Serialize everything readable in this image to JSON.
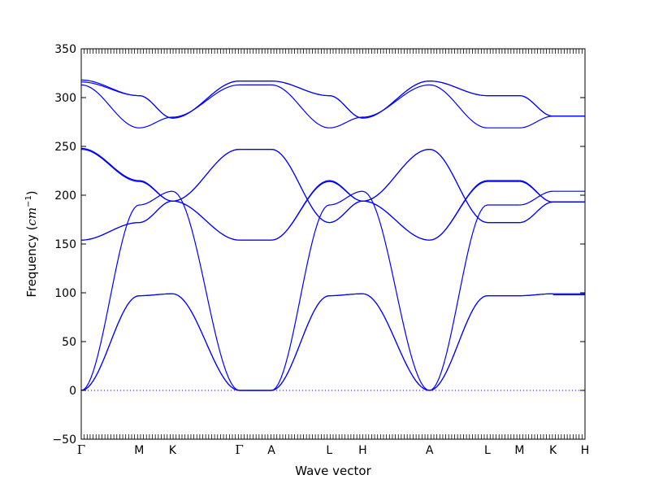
{
  "chart_data": {
    "type": "line",
    "title": "",
    "xlabel": "Wave vector",
    "ylabel": "Frequency",
    "ylabel_unit": "cm",
    "ylabel_unit_exp": "−1",
    "ylim": [
      -50,
      350
    ],
    "yticks": [
      "−50",
      "0",
      "50",
      "100",
      "150",
      "200",
      "250",
      "300",
      "350"
    ],
    "grid": false,
    "legend": "none",
    "line_color": "#0000ff",
    "zero_line_color": "#0000ff",
    "high_symmetry_points": [
      {
        "label": "Γ",
        "x": 0.0
      },
      {
        "label": "M",
        "x": 0.0667
      },
      {
        "label": "K",
        "x": 0.1051
      },
      {
        "label": "Γ",
        "x": 0.1821
      },
      {
        "label": "A",
        "x": 0.219
      },
      {
        "label": "L",
        "x": 0.2857
      },
      {
        "label": "H",
        "x": 0.3242
      },
      {
        "label": "A",
        "x": 0.4011
      },
      {
        "label": "L",
        "x": 0.4678
      },
      {
        "label": "M",
        "x": 0.5048
      },
      {
        "label": "K",
        "x": 0.5433
      },
      {
        "label": "H",
        "x": 0.5802
      }
    ],
    "branches": [
      {
        "segments": [
          [
            [
              0,
              0
            ],
            [
              0.0667,
              97
            ],
            [
              0.1051,
              99
            ],
            [
              0.1821,
              0
            ]
          ],
          [
            [
              0.1821,
              0
            ],
            [
              0.219,
              0
            ]
          ],
          [
            [
              0.219,
              0
            ],
            [
              0.2857,
              97
            ],
            [
              0.3242,
              99
            ],
            [
              0.4011,
              0
            ]
          ],
          [
            [
              0.4011,
              0
            ],
            [
              0.4678,
              97
            ],
            [
              0.5048,
              97
            ]
          ],
          [
            [
              0.5048,
              97
            ],
            [
              0.5433,
              99
            ]
          ],
          [
            [
              0.5433,
              98
            ],
            [
              0.5802,
              98
            ]
          ]
        ]
      },
      {
        "segments": [
          [
            [
              0,
              0
            ],
            [
              0.0667,
              97
            ],
            [
              0.1051,
              99
            ],
            [
              0.1821,
              0
            ]
          ],
          [
            [
              0.1821,
              0
            ],
            [
              0.219,
              0
            ]
          ],
          [
            [
              0.219,
              0
            ],
            [
              0.2857,
              97
            ],
            [
              0.3242,
              99
            ],
            [
              0.4011,
              0
            ]
          ],
          [
            [
              0.4011,
              0
            ],
            [
              0.4678,
              97
            ],
            [
              0.5048,
              97
            ]
          ],
          [
            [
              0.5048,
              97
            ],
            [
              0.5433,
              99
            ]
          ],
          [
            [
              0.5433,
              99
            ],
            [
              0.5802,
              99
            ]
          ]
        ]
      },
      {
        "segments": [
          [
            [
              0,
              0
            ],
            [
              0.0667,
              190
            ],
            [
              0.1051,
              204
            ],
            [
              0.1821,
              0
            ]
          ],
          [
            [
              0.1821,
              0
            ],
            [
              0.219,
              0
            ]
          ],
          [
            [
              0.219,
              0
            ],
            [
              0.2857,
              190
            ],
            [
              0.3242,
              204
            ],
            [
              0.4011,
              0
            ]
          ],
          [
            [
              0.4011,
              0
            ],
            [
              0.4678,
              190
            ],
            [
              0.5048,
              190
            ]
          ],
          [
            [
              0.5048,
              190
            ],
            [
              0.5433,
              204
            ]
          ],
          [
            [
              0.5433,
              204
            ],
            [
              0.5802,
              204
            ]
          ]
        ]
      },
      {
        "segments": [
          [
            [
              0,
              154
            ],
            [
              0.0667,
              172
            ],
            [
              0.1051,
              194
            ],
            [
              0.1821,
              247
            ]
          ],
          [
            [
              0.1821,
              247
            ],
            [
              0.219,
              247
            ]
          ],
          [
            [
              0.219,
              247
            ],
            [
              0.2857,
              172
            ],
            [
              0.3242,
              194
            ],
            [
              0.4011,
              247
            ]
          ],
          [
            [
              0.4011,
              247
            ],
            [
              0.4678,
              172
            ],
            [
              0.5048,
              172
            ]
          ],
          [
            [
              0.5048,
              172
            ],
            [
              0.5433,
              193
            ]
          ],
          [
            [
              0.5433,
              193
            ],
            [
              0.5802,
              193
            ]
          ]
        ]
      },
      {
        "segments": [
          [
            [
              0,
              154
            ],
            [
              0.0667,
              172
            ],
            [
              0.1051,
              194
            ],
            [
              0.1821,
              247
            ]
          ],
          [
            [
              0.1821,
              247
            ],
            [
              0.219,
              247
            ]
          ],
          [
            [
              0.219,
              247
            ],
            [
              0.2857,
              172
            ],
            [
              0.3242,
              194
            ],
            [
              0.4011,
              247
            ]
          ],
          [
            [
              0.4011,
              247
            ],
            [
              0.4678,
              172
            ],
            [
              0.5048,
              172
            ]
          ],
          [
            [
              0.5048,
              172
            ],
            [
              0.5433,
              193
            ]
          ],
          [
            [
              0.5433,
              193
            ],
            [
              0.5802,
              193
            ]
          ]
        ]
      },
      {
        "segments": [
          [
            [
              0,
              247
            ],
            [
              0.0667,
              214
            ],
            [
              0.1051,
              194
            ],
            [
              0.1821,
              154
            ]
          ],
          [
            [
              0.1821,
              154
            ],
            [
              0.219,
              154
            ]
          ],
          [
            [
              0.219,
              154
            ],
            [
              0.2857,
              214
            ],
            [
              0.3242,
              194
            ],
            [
              0.4011,
              154
            ]
          ],
          [
            [
              0.4011,
              154
            ],
            [
              0.4678,
              214
            ],
            [
              0.5048,
              214
            ]
          ],
          [
            [
              0.5048,
              214
            ],
            [
              0.5433,
              193
            ]
          ],
          [
            [
              0.5433,
              193
            ],
            [
              0.5802,
              193
            ]
          ]
        ]
      },
      {
        "segments": [
          [
            [
              0,
              248
            ],
            [
              0.0667,
              215
            ],
            [
              0.1051,
              194
            ],
            [
              0.1821,
              154
            ]
          ],
          [
            [
              0.1821,
              154
            ],
            [
              0.219,
              154
            ]
          ],
          [
            [
              0.219,
              154
            ],
            [
              0.2857,
              215
            ],
            [
              0.3242,
              194
            ],
            [
              0.4011,
              154
            ]
          ],
          [
            [
              0.4011,
              154
            ],
            [
              0.4678,
              215
            ],
            [
              0.5048,
              215
            ]
          ],
          [
            [
              0.5048,
              215
            ],
            [
              0.5433,
              193
            ]
          ],
          [
            [
              0.5433,
              193
            ],
            [
              0.5802,
              193
            ]
          ]
        ]
      },
      {
        "segments": [
          [
            [
              0,
              313
            ],
            [
              0.0667,
              269
            ],
            [
              0.1051,
              280
            ],
            [
              0.1821,
              313
            ]
          ],
          [
            [
              0.1821,
              313
            ],
            [
              0.219,
              313
            ]
          ],
          [
            [
              0.219,
              313
            ],
            [
              0.2857,
              269
            ],
            [
              0.3242,
              280
            ],
            [
              0.4011,
              313
            ]
          ],
          [
            [
              0.4011,
              313
            ],
            [
              0.4678,
              269
            ],
            [
              0.5048,
              269
            ]
          ],
          [
            [
              0.5048,
              269
            ],
            [
              0.5433,
              281
            ]
          ],
          [
            [
              0.5433,
              281
            ],
            [
              0.5802,
              281
            ]
          ]
        ]
      },
      {
        "segments": [
          [
            [
              0,
              316
            ],
            [
              0.0667,
              302
            ],
            [
              0.1051,
              279
            ],
            [
              0.1821,
              317
            ]
          ],
          [
            [
              0.1821,
              317
            ],
            [
              0.219,
              317
            ]
          ],
          [
            [
              0.219,
              317
            ],
            [
              0.2857,
              302
            ],
            [
              0.3242,
              279
            ],
            [
              0.4011,
              317
            ]
          ],
          [
            [
              0.4011,
              317
            ],
            [
              0.4678,
              302
            ],
            [
              0.5048,
              302
            ]
          ],
          [
            [
              0.5048,
              302
            ],
            [
              0.5433,
              281
            ]
          ],
          [
            [
              0.5433,
              281
            ],
            [
              0.5802,
              281
            ]
          ]
        ]
      },
      {
        "segments": [
          [
            [
              0,
              318
            ],
            [
              0.0667,
              302
            ],
            [
              0.1051,
              279
            ],
            [
              0.1821,
              317
            ]
          ],
          [
            [
              0.1821,
              317
            ],
            [
              0.219,
              317
            ]
          ],
          [
            [
              0.219,
              317
            ],
            [
              0.2857,
              302
            ],
            [
              0.3242,
              279
            ],
            [
              0.4011,
              317
            ]
          ],
          [
            [
              0.4011,
              317
            ],
            [
              0.4678,
              302
            ],
            [
              0.5048,
              302
            ]
          ],
          [
            [
              0.5048,
              302
            ],
            [
              0.5433,
              281
            ]
          ],
          [
            [
              0.5433,
              281
            ],
            [
              0.5802,
              281
            ]
          ]
        ]
      }
    ]
  }
}
